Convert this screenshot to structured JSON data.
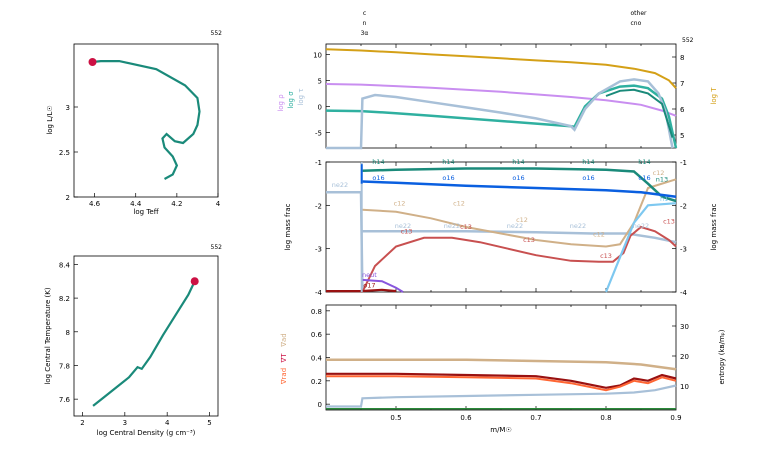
{
  "colors": {
    "teal": "#1a8a7a",
    "red": "#cc1144",
    "gold": "#d4a017",
    "violet": "#c98ef0",
    "steel": "#a8c0d8",
    "seafoam": "#2fb0a0",
    "blue": "#0a5fe0",
    "tan": "#d0b088",
    "rose": "#c85050",
    "sky": "#7ec8f0",
    "purple": "#8855dd",
    "darkred": "#991111",
    "orange": "#ff6633"
  },
  "hr": {
    "model": "552",
    "xlabel": "log Teff",
    "ylabel": "log L/L☉",
    "xticks": [
      "4.6",
      "4.4",
      "4.2",
      "4"
    ],
    "yticks": [
      "3",
      "2.5",
      "2"
    ],
    "track": [
      [
        4.26,
        2.2
      ],
      [
        4.22,
        2.25
      ],
      [
        4.2,
        2.35
      ],
      [
        4.22,
        2.45
      ],
      [
        4.26,
        2.55
      ],
      [
        4.27,
        2.65
      ],
      [
        4.25,
        2.7
      ],
      [
        4.21,
        2.62
      ],
      [
        4.17,
        2.6
      ],
      [
        4.12,
        2.7
      ],
      [
        4.1,
        2.8
      ],
      [
        4.09,
        2.95
      ],
      [
        4.1,
        3.1
      ],
      [
        4.16,
        3.24
      ],
      [
        4.3,
        3.42
      ],
      [
        4.48,
        3.51
      ],
      [
        4.57,
        3.51
      ],
      [
        4.61,
        3.5
      ]
    ],
    "current": [
      4.61,
      3.5
    ]
  },
  "tc": {
    "model": "552",
    "xlabel": "log Central Density (g cm⁻³)",
    "ylabel": "log Central Temperature (K)",
    "xticks": [
      "2",
      "3",
      "4",
      "5"
    ],
    "yticks": [
      "7.6",
      "7.8",
      "8",
      "8.2",
      "8.4"
    ],
    "track": [
      [
        2.25,
        7.56
      ],
      [
        2.5,
        7.61
      ],
      [
        2.8,
        7.67
      ],
      [
        3.1,
        7.73
      ],
      [
        3.3,
        7.79
      ],
      [
        3.4,
        7.78
      ],
      [
        3.6,
        7.85
      ],
      [
        3.9,
        7.98
      ],
      [
        4.2,
        8.1
      ],
      [
        4.5,
        8.22
      ],
      [
        4.65,
        8.3
      ]
    ],
    "current": [
      4.65,
      8.3
    ]
  },
  "top": {
    "model": "552",
    "burn_labels": [
      {
        "m": 0.455,
        "lines": [
          "c",
          "n",
          "3α"
        ]
      },
      {
        "m": 0.835,
        "lines": [
          "other",
          "cno"
        ]
      }
    ],
    "ylabels_left": [
      "log ρ",
      "log σ",
      "log τ"
    ],
    "ylabel_right": "log T",
    "yticks_left": [
      "10",
      "5",
      "0",
      "-5"
    ],
    "yticks_right": [
      "8",
      "7",
      "6",
      "5"
    ]
  },
  "mid": {
    "ylabel": "log mass frac",
    "yticks": [
      "-1",
      "-2",
      "-3",
      "-4"
    ],
    "isotope_labels": [
      "h14",
      "o16",
      "ne22",
      "c12",
      "c13",
      "n13",
      "neut",
      "h1",
      "o17"
    ]
  },
  "bot": {
    "xlabel": "m/M☉",
    "ylabel_right": "entropy (kʙ/mₚ)",
    "ylabel_left": "∇ad  ∇T  ∇rad",
    "yticks": [
      "0.8",
      "0.6",
      "0.4",
      "0.2",
      "0"
    ],
    "yticks_right": [
      "30",
      "20",
      "10"
    ],
    "xticks": [
      "0.5",
      "0.6",
      "0.7",
      "0.8",
      "0.9"
    ]
  },
  "chart_data": [
    {
      "type": "line",
      "title": "",
      "xlabel": "log Teff",
      "ylabel": "log L/L☉",
      "xlim": [
        4.7,
        4.0
      ],
      "ylim": [
        2.0,
        3.7
      ],
      "series": [
        {
          "name": "",
          "values": "hr.track"
        }
      ]
    },
    {
      "type": "line",
      "title": "",
      "xlabel": "log Central Density",
      "ylabel": "log Central Temperature",
      "xlim": [
        1.8,
        5.2
      ],
      "ylim": [
        7.5,
        8.45
      ]
    },
    {
      "type": "line",
      "title": "",
      "xlabel": "m/M☉",
      "xlim": [
        0.4,
        0.9
      ],
      "ylim_left": [
        -8,
        12
      ],
      "ylim_right": [
        4.5,
        8.5
      ],
      "series": [
        {
          "name": "log T",
          "x": [
            0.4,
            0.5,
            0.6,
            0.7,
            0.8,
            0.85,
            0.88,
            0.9
          ],
          "values": [
            8.3,
            8.2,
            8.1,
            7.95,
            7.8,
            7.6,
            7.3,
            6.8
          ]
        },
        {
          "name": "log ρ",
          "x": [
            0.4,
            0.45,
            0.5,
            0.6,
            0.7,
            0.8,
            0.86,
            0.9
          ],
          "values": [
            4,
            3.9,
            3.5,
            3,
            2.2,
            1,
            -0.5,
            -2.5
          ]
        }
      ]
    },
    {
      "type": "line",
      "title": "",
      "xlabel": "m/M☉",
      "ylabel": "log mass frac",
      "xlim": [
        0.4,
        0.9
      ],
      "ylim": [
        -4,
        -1
      ]
    },
    {
      "type": "line",
      "title": "",
      "xlabel": "m/M☉",
      "xlim": [
        0.4,
        0.9
      ],
      "ylim": [
        -0.05,
        0.85
      ]
    }
  ]
}
